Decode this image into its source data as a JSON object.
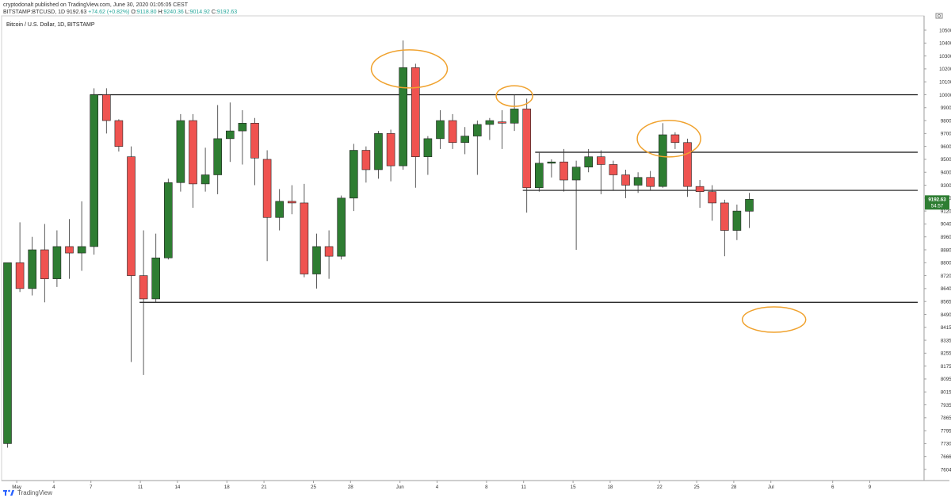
{
  "header": {
    "published_line": "cryptodonalt published on TradingView.com, June 30, 2020 01:05:05 CEST",
    "symbol": "BITSTAMP:BTCUSD, 1D",
    "price": "9192.63",
    "change": "+74.62 (+0.82%)",
    "o_label": "O:",
    "o_value": "9118.80",
    "h_label": "H:",
    "h_value": "9240.36",
    "l_label": "L:",
    "l_value": "9014.92",
    "c_label": "C:",
    "c_value": "9192.63"
  },
  "legend": "Bitcoin / U.S. Dollar, 1D, BITSTAMP",
  "footer": {
    "brand": "TradingView"
  },
  "chart_data": {
    "type": "candlestick",
    "title": "Bitcoin / U.S. Dollar, 1D, BITSTAMP",
    "y_axis_labels": [
      "10500.00",
      "10400.00",
      "10300.00",
      "10200.00",
      "10100.00",
      "10000.00",
      "9900.00",
      "9800.00",
      "9700.00",
      "9600.00",
      "9500.00",
      "9400.00",
      "9300.00",
      "9200.00",
      "9120.00",
      "9040.00",
      "8960.00",
      "8880.00",
      "8800.00",
      "8720.00",
      "8640.00",
      "8565.00",
      "8490.00",
      "8415.00",
      "8335.00",
      "8255.00",
      "8175.00",
      "8095.00",
      "8015.00",
      "7935.00",
      "7865.00",
      "7795.00",
      "7730.00",
      "7666.00",
      "7604.00"
    ],
    "x_axis_labels": [
      "May",
      "4",
      "7",
      "11",
      "14",
      "18",
      "21",
      "25",
      "28",
      "Jun",
      "4",
      "8",
      "11",
      "15",
      "18",
      "22",
      "25",
      "28",
      "Jul",
      "6",
      "9"
    ],
    "last_price_label": "9192.63",
    "countdown_label": "54:57",
    "colors": {
      "up": "#2e7d32",
      "down": "#ef5350",
      "annotation": "#f0a22e",
      "lines": "#111111"
    },
    "candles": [
      {
        "date": "Apr 30",
        "o": 7730,
        "h": 8800,
        "l": 7710,
        "c": 8800
      },
      {
        "date": "May 1",
        "o": 8800,
        "h": 9050,
        "l": 8620,
        "c": 8640
      },
      {
        "date": "May 2",
        "o": 8640,
        "h": 8960,
        "l": 8600,
        "c": 8880
      },
      {
        "date": "May 3",
        "o": 8880,
        "h": 9040,
        "l": 8560,
        "c": 8700
      },
      {
        "date": "May 4",
        "o": 8700,
        "h": 9000,
        "l": 8650,
        "c": 8900
      },
      {
        "date": "May 5",
        "o": 8900,
        "h": 9070,
        "l": 8700,
        "c": 8860
      },
      {
        "date": "May 6",
        "o": 8860,
        "h": 9180,
        "l": 8750,
        "c": 8900
      },
      {
        "date": "May 7",
        "o": 8900,
        "h": 10050,
        "l": 8850,
        "c": 10000
      },
      {
        "date": "May 8",
        "o": 10000,
        "h": 10050,
        "l": 9700,
        "c": 9800
      },
      {
        "date": "May 9",
        "o": 9800,
        "h": 9810,
        "l": 9560,
        "c": 9600
      },
      {
        "date": "May 10",
        "o": 9520,
        "h": 9600,
        "l": 8200,
        "c": 8720
      },
      {
        "date": "May 11",
        "o": 8720,
        "h": 9000,
        "l": 8120,
        "c": 8580
      },
      {
        "date": "May 12",
        "o": 8580,
        "h": 8980,
        "l": 8560,
        "c": 8830
      },
      {
        "date": "May 13",
        "o": 8830,
        "h": 9350,
        "l": 8820,
        "c": 9320
      },
      {
        "date": "May 14",
        "o": 9320,
        "h": 9850,
        "l": 9250,
        "c": 9800
      },
      {
        "date": "May 15",
        "o": 9800,
        "h": 9850,
        "l": 9140,
        "c": 9310
      },
      {
        "date": "May 16",
        "o": 9310,
        "h": 9590,
        "l": 9250,
        "c": 9380
      },
      {
        "date": "May 17",
        "o": 9380,
        "h": 9920,
        "l": 9230,
        "c": 9660
      },
      {
        "date": "May 18",
        "o": 9660,
        "h": 9940,
        "l": 9480,
        "c": 9720
      },
      {
        "date": "May 19",
        "o": 9720,
        "h": 9880,
        "l": 9460,
        "c": 9780
      },
      {
        "date": "May 20",
        "o": 9780,
        "h": 9820,
        "l": 9300,
        "c": 9510
      },
      {
        "date": "May 21",
        "o": 9500,
        "h": 9570,
        "l": 8810,
        "c": 9080
      },
      {
        "date": "May 22",
        "o": 9080,
        "h": 9270,
        "l": 9000,
        "c": 9180
      },
      {
        "date": "May 23",
        "o": 9180,
        "h": 9300,
        "l": 9100,
        "c": 9170
      },
      {
        "date": "May 24",
        "o": 9170,
        "h": 9310,
        "l": 8710,
        "c": 8730
      },
      {
        "date": "May 25",
        "o": 8730,
        "h": 8980,
        "l": 8640,
        "c": 8900
      },
      {
        "date": "May 26",
        "o": 8900,
        "h": 9000,
        "l": 8700,
        "c": 8840
      },
      {
        "date": "May 27",
        "o": 8840,
        "h": 9220,
        "l": 8820,
        "c": 9200
      },
      {
        "date": "May 28",
        "o": 9200,
        "h": 9620,
        "l": 9120,
        "c": 9570
      },
      {
        "date": "May 29",
        "o": 9570,
        "h": 9600,
        "l": 9320,
        "c": 9420
      },
      {
        "date": "May 30",
        "o": 9420,
        "h": 9720,
        "l": 9350,
        "c": 9700
      },
      {
        "date": "May 31",
        "o": 9700,
        "h": 9730,
        "l": 9330,
        "c": 9450
      },
      {
        "date": "Jun 1",
        "o": 9450,
        "h": 10420,
        "l": 9420,
        "c": 10210
      },
      {
        "date": "Jun 2",
        "o": 10210,
        "h": 10240,
        "l": 9280,
        "c": 9520
      },
      {
        "date": "Jun 3",
        "o": 9520,
        "h": 9680,
        "l": 9380,
        "c": 9660
      },
      {
        "date": "Jun 4",
        "o": 9660,
        "h": 9880,
        "l": 9580,
        "c": 9800
      },
      {
        "date": "Jun 5",
        "o": 9800,
        "h": 9850,
        "l": 9580,
        "c": 9630
      },
      {
        "date": "Jun 6",
        "o": 9630,
        "h": 9750,
        "l": 9540,
        "c": 9680
      },
      {
        "date": "Jun 7",
        "o": 9680,
        "h": 9800,
        "l": 9380,
        "c": 9770
      },
      {
        "date": "Jun 8",
        "o": 9770,
        "h": 9820,
        "l": 9650,
        "c": 9800
      },
      {
        "date": "Jun 9",
        "o": 9790,
        "h": 9880,
        "l": 9580,
        "c": 9780
      },
      {
        "date": "Jun 10",
        "o": 9780,
        "h": 10000,
        "l": 9720,
        "c": 9890
      },
      {
        "date": "Jun 11",
        "o": 9890,
        "h": 9970,
        "l": 9110,
        "c": 9280
      },
      {
        "date": "Jun 12",
        "o": 9280,
        "h": 9550,
        "l": 9250,
        "c": 9470
      },
      {
        "date": "Jun 13",
        "o": 9470,
        "h": 9500,
        "l": 9360,
        "c": 9480
      },
      {
        "date": "Jun 14",
        "o": 9480,
        "h": 9580,
        "l": 9250,
        "c": 9340
      },
      {
        "date": "Jun 15",
        "o": 9340,
        "h": 9490,
        "l": 8880,
        "c": 9440
      },
      {
        "date": "Jun 16",
        "o": 9440,
        "h": 9580,
        "l": 9400,
        "c": 9520
      },
      {
        "date": "Jun 17",
        "o": 9520,
        "h": 9570,
        "l": 9230,
        "c": 9460
      },
      {
        "date": "Jun 18",
        "o": 9460,
        "h": 9490,
        "l": 9260,
        "c": 9380
      },
      {
        "date": "Jun 19",
        "o": 9380,
        "h": 9420,
        "l": 9200,
        "c": 9300
      },
      {
        "date": "Jun 20",
        "o": 9300,
        "h": 9400,
        "l": 9240,
        "c": 9360
      },
      {
        "date": "Jun 21",
        "o": 9360,
        "h": 9410,
        "l": 9260,
        "c": 9290
      },
      {
        "date": "Jun 22",
        "o": 9290,
        "h": 9780,
        "l": 9280,
        "c": 9690
      },
      {
        "date": "Jun 23",
        "o": 9690,
        "h": 9710,
        "l": 9580,
        "c": 9630
      },
      {
        "date": "Jun 24",
        "o": 9630,
        "h": 9660,
        "l": 9210,
        "c": 9290
      },
      {
        "date": "Jun 25",
        "o": 9290,
        "h": 9340,
        "l": 9140,
        "c": 9250
      },
      {
        "date": "Jun 26",
        "o": 9250,
        "h": 9300,
        "l": 9060,
        "c": 9170
      },
      {
        "date": "Jun 27",
        "o": 9170,
        "h": 9190,
        "l": 8840,
        "c": 9000
      },
      {
        "date": "Jun 28",
        "o": 9000,
        "h": 9160,
        "l": 8940,
        "c": 9120
      },
      {
        "date": "Jun 29",
        "o": 9118.8,
        "h": 9240.36,
        "l": 9014.92,
        "c": 9192.63
      }
    ],
    "horizontal_levels": [
      {
        "price": 10000,
        "from": "May 7",
        "to": "end"
      },
      {
        "price": 9555,
        "from": "Jun 12",
        "to": "end"
      },
      {
        "price": 9260,
        "from": "Jun 11",
        "to": "end"
      },
      {
        "price": 8560,
        "from": "May 11",
        "to": "end"
      }
    ],
    "annotations": [
      {
        "shape": "ellipse",
        "center_date": "Jun 1.5",
        "center_price": 10200
      },
      {
        "shape": "ellipse",
        "center_date": "Jun 10",
        "center_price": 9990
      },
      {
        "shape": "ellipse",
        "center_date": "Jun 22.5",
        "center_price": 9660
      },
      {
        "shape": "ellipse",
        "center_date": "Jul 2",
        "center_price": 8460
      }
    ]
  }
}
